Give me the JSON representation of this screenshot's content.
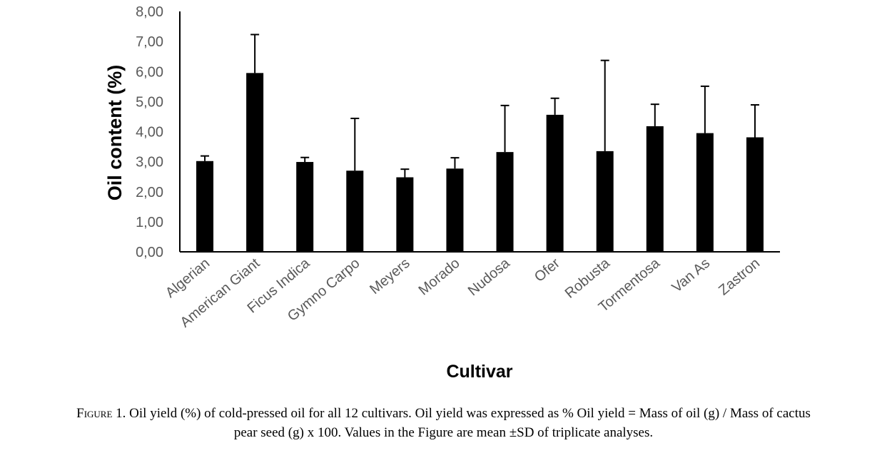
{
  "chart_data": {
    "type": "bar",
    "title": "",
    "xlabel": "Cultivar",
    "ylabel": "Oil content (%)",
    "ylim": [
      0,
      8
    ],
    "yticks": [
      "0,00",
      "1,00",
      "2,00",
      "3,00",
      "4,00",
      "5,00",
      "6,00",
      "7,00",
      "8,00"
    ],
    "grid": false,
    "legend": "none",
    "bar_color": "#000000",
    "categories": [
      "Algerian",
      "American Giant",
      "Ficus Indica",
      "Gymno Carpo",
      "Meyers",
      "Morado",
      "Nudosa",
      "Ofer",
      "Robusta",
      "Tormentosa",
      "Van As",
      "Zastron"
    ],
    "values": [
      3.02,
      5.95,
      2.99,
      2.7,
      2.48,
      2.77,
      3.32,
      4.56,
      3.35,
      4.18,
      3.95,
      3.81
    ],
    "errors": [
      0.17,
      1.28,
      0.15,
      1.74,
      0.27,
      0.36,
      1.55,
      0.55,
      3.02,
      0.73,
      1.56,
      1.08
    ]
  },
  "caption": {
    "label": "Figure 1.",
    "line1": "Oil yield (%) of cold-pressed oil for all 12 cultivars. Oil yield was expressed as % Oil yield = Mass of oil (g) / Mass of cactus",
    "line2": "pear seed (g) x 100. Values in the Figure are mean ±SD of triplicate analyses."
  }
}
